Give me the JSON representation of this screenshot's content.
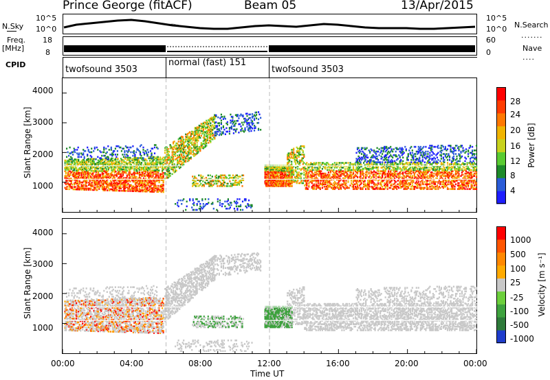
{
  "header": {
    "station": "Prince George (fitACF)",
    "beam": "Beam 05",
    "date": "13/Apr/2015"
  },
  "aux_panel": {
    "left_labels": {
      "nsky": "N.Sky",
      "freq_top": "Freq.",
      "freq_unit": "[MHz]",
      "cpid": "CPID"
    },
    "right_labels": {
      "nsearch": "N.Search",
      "nave": "Nave"
    },
    "nsky_ticks": [
      "10^5",
      "10^0"
    ],
    "nsearch_ticks": [
      "10^5",
      "10^0"
    ],
    "freq_ticks": [
      "18",
      "8"
    ],
    "nave_ticks": [
      "60",
      "0"
    ],
    "cpid_segments": [
      {
        "label": "twofsound 3503",
        "start_ut": "00:00",
        "end_ut": "06:00"
      },
      {
        "label": "normal (fast) 151",
        "start_ut": "06:00",
        "end_ut": "12:00"
      },
      {
        "label": "twofsound 3503",
        "start_ut": "12:00",
        "end_ut": "24:00"
      }
    ]
  },
  "panels": {
    "power": {
      "ylabel": "Slant Range [km]",
      "yticks": [
        "1000",
        "2000",
        "3000",
        "4000"
      ],
      "colorbar_label": "Power [dB]",
      "colorbar_ticks": [
        "28",
        "24",
        "20",
        "16",
        "12",
        "8",
        "4"
      ],
      "colors": [
        "#1e1eff",
        "#2a5cd8",
        "#1e8a2a",
        "#5acb32",
        "#c8d21e",
        "#f0b400",
        "#ff7800",
        "#ff3c00",
        "#ff0000"
      ]
    },
    "velocity": {
      "ylabel": "Slant Range [km]",
      "yticks": [
        "1000",
        "2000",
        "3000",
        "4000"
      ],
      "colorbar_label": "Velocity [m s⁻¹]",
      "colorbar_ticks": [
        "1000",
        "500",
        "100",
        "25",
        "-25",
        "-100",
        "-500",
        "-1000"
      ],
      "colors": [
        "#1e3ccc",
        "#2e7a3a",
        "#3ea23e",
        "#6ccf3c",
        "#c8c8c8",
        "#ffaa00",
        "#ff8800",
        "#ff5500",
        "#ff0000"
      ]
    }
  },
  "xaxis": {
    "ticks": [
      "00:00",
      "04:00",
      "08:00",
      "12:00",
      "16:00",
      "20:00",
      "00:00"
    ],
    "label": "Time UT"
  },
  "chart_data": {
    "type": "heatmap",
    "x_range_hours": [
      0,
      24
    ],
    "y_range_km": [
      0,
      4500
    ],
    "mode_change_markers_ut": [
      "06:00",
      "12:00"
    ],
    "power_db_range": [
      0,
      30
    ],
    "velocity_range": [
      -1000,
      1000
    ]
  }
}
